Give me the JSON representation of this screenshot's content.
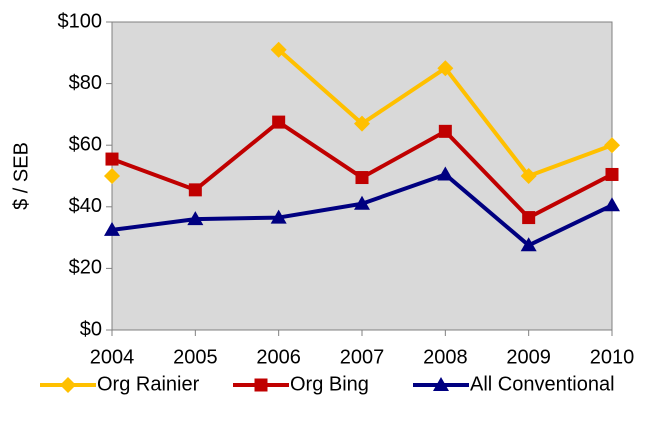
{
  "chart_data": {
    "type": "line",
    "y_label": "$ / SEB",
    "categories": [
      "2004",
      "2005",
      "2006",
      "2007",
      "2008",
      "2009",
      "2010"
    ],
    "series": [
      {
        "name": "Org Rainier",
        "color": "#ffc000",
        "marker": "diamond",
        "values": [
          50,
          null,
          91,
          67,
          85,
          50,
          60
        ]
      },
      {
        "name": "Org Bing",
        "color": "#c00000",
        "marker": "square",
        "values": [
          55.5,
          45.5,
          67.5,
          49.5,
          64.5,
          36.5,
          50.5
        ]
      },
      {
        "name": "All Conventional",
        "color": "#000080",
        "marker": "triangle",
        "values": [
          32.5,
          36,
          36.5,
          41,
          50.5,
          27.5,
          40.5
        ]
      }
    ],
    "ylim": [
      0,
      100
    ],
    "yticks": [
      {
        "value": 0,
        "label": "$0"
      },
      {
        "value": 20,
        "label": "$20"
      },
      {
        "value": 40,
        "label": "$40"
      },
      {
        "value": 60,
        "label": "$60"
      },
      {
        "value": 80,
        "label": "$80"
      },
      {
        "value": 100,
        "label": "$100"
      }
    ],
    "grid": false,
    "legend_position": "bottom"
  }
}
